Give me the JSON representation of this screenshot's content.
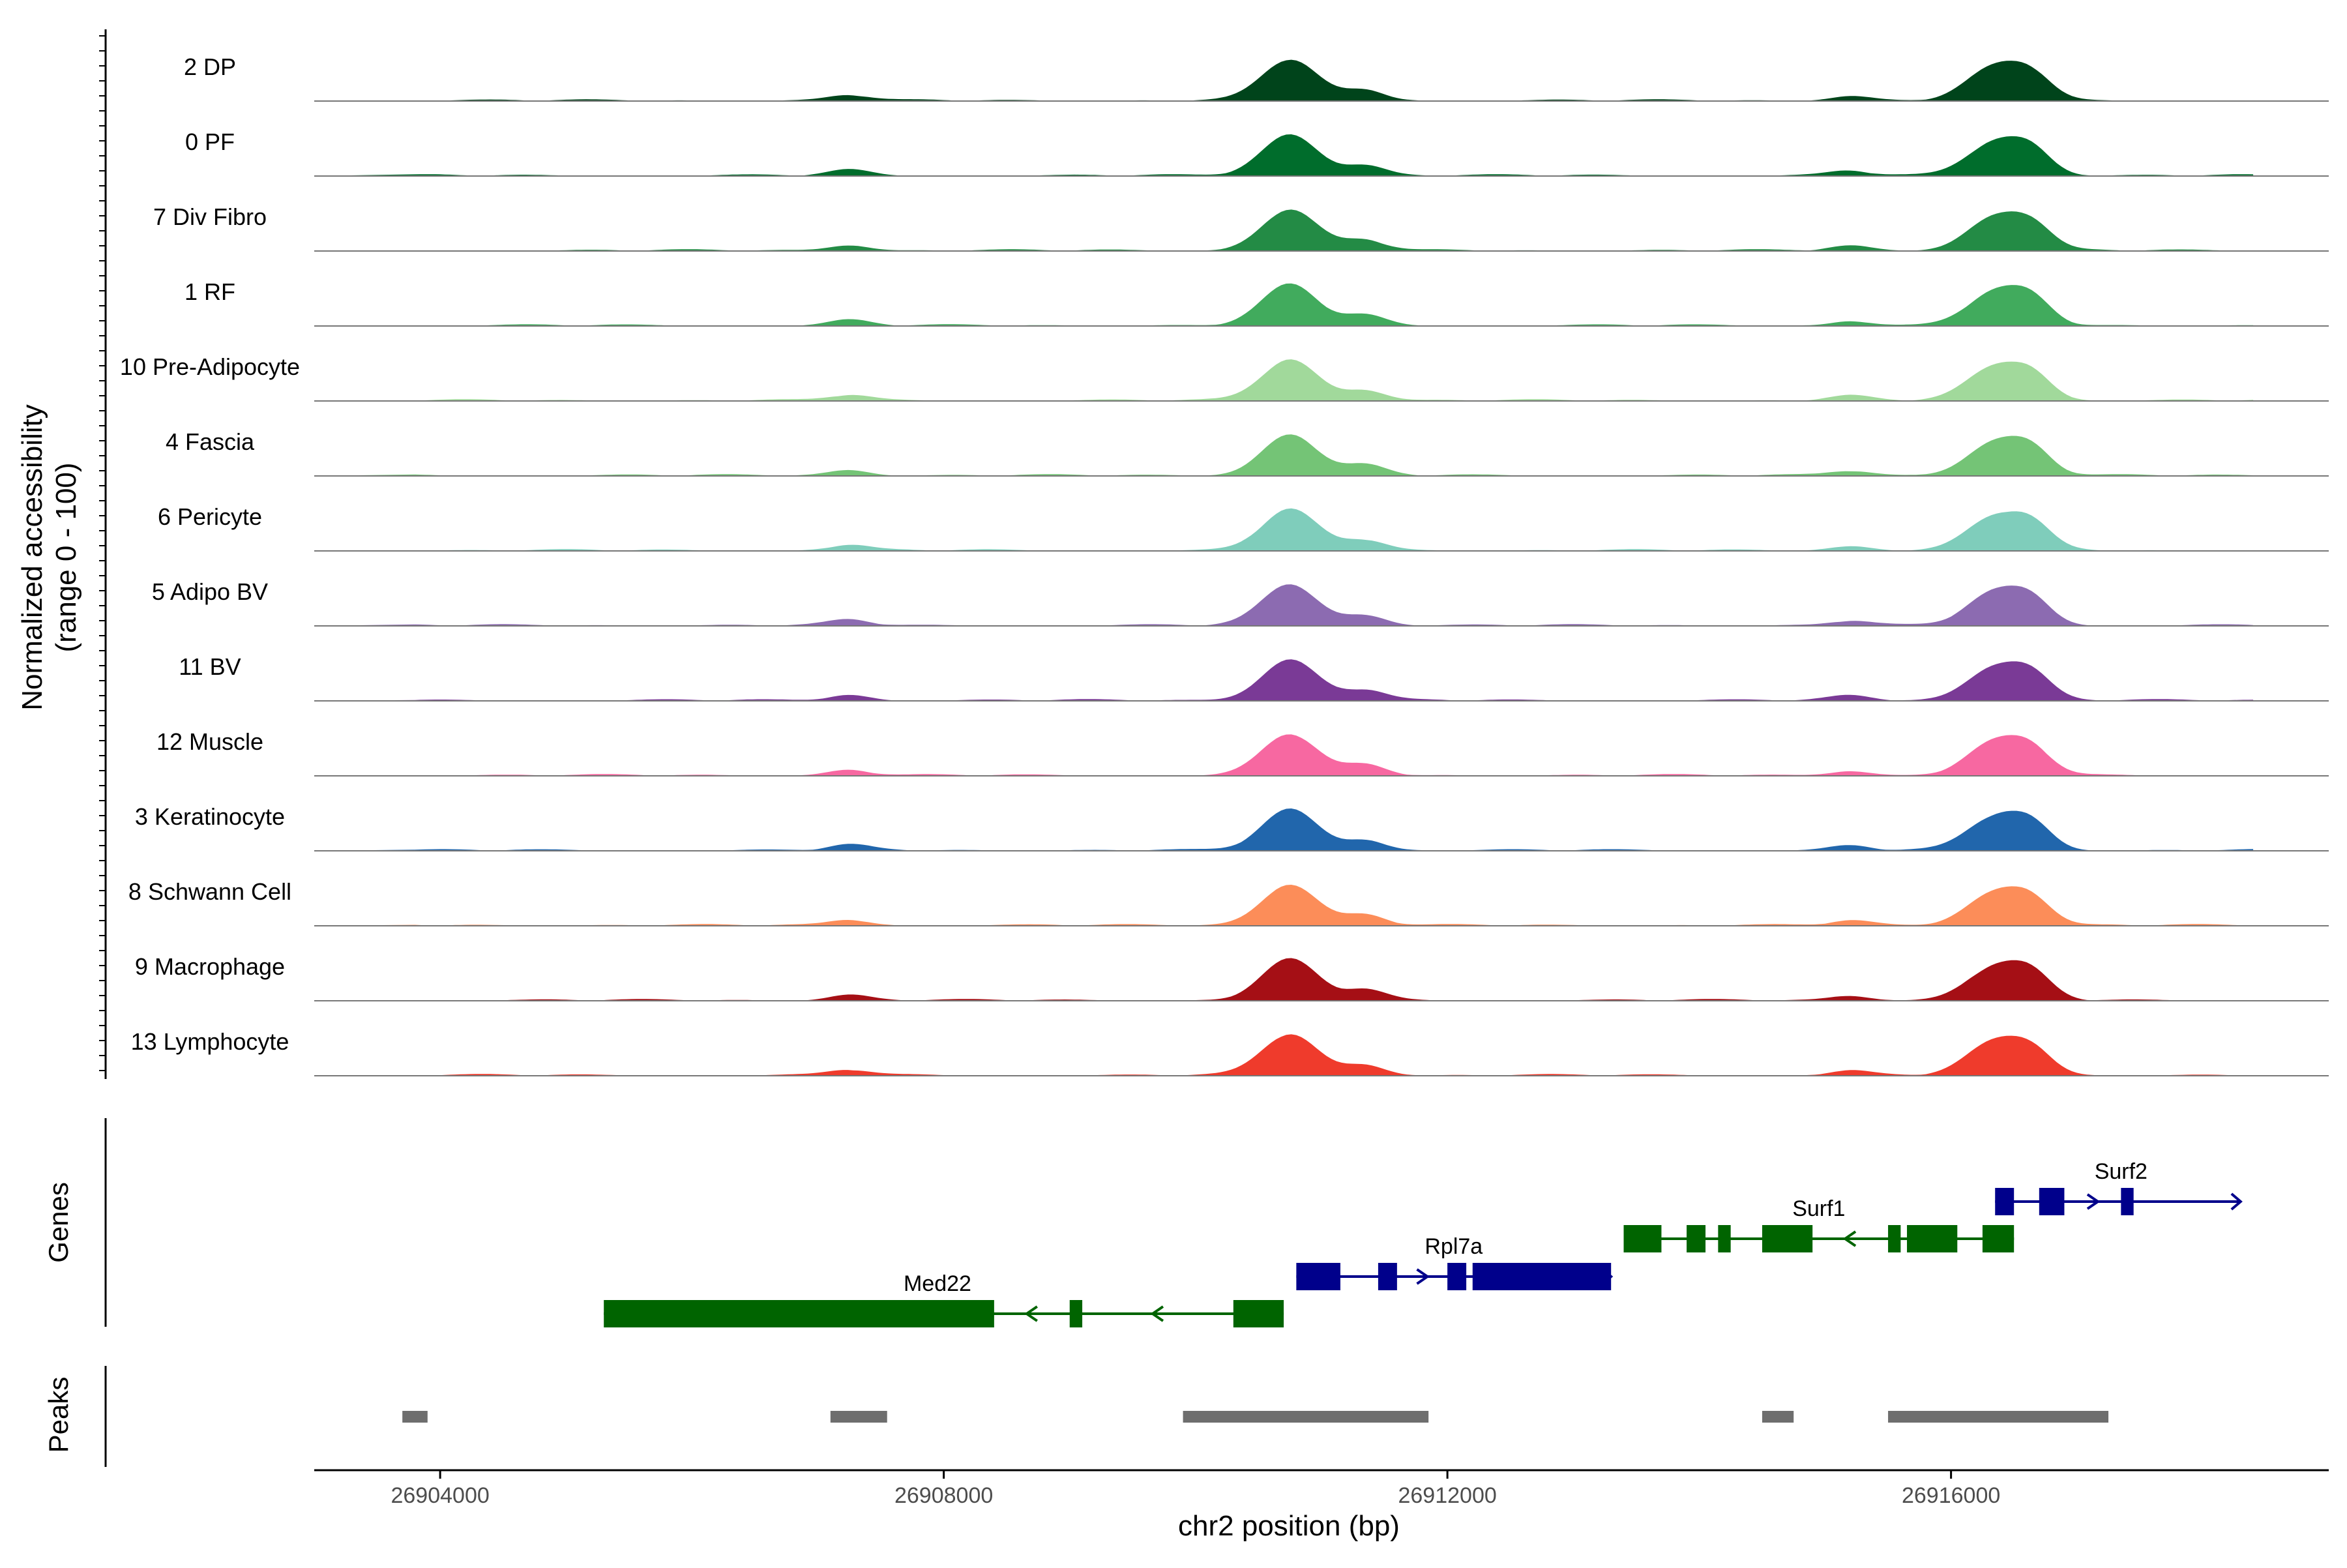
{
  "chart_data": {
    "type": "area",
    "chromosome": "chr2",
    "xlabel": "chr2 position (bp)",
    "xlim": [
      26903000,
      26919000
    ],
    "xticks": [
      {
        "value": 26904000,
        "label": "26904000"
      },
      {
        "value": 26908000,
        "label": "26908000"
      },
      {
        "value": 26912000,
        "label": "26912000"
      },
      {
        "value": 26916000,
        "label": "26916000"
      }
    ],
    "ylabel": [
      "Normalized accessibility",
      "(range 0 - 100)"
    ],
    "ylim": [
      0,
      100
    ],
    "tracks": [
      {
        "name": "2 DP",
        "color": "#00441b",
        "peaks": [
          [
            26910750,
            90
          ],
          [
            26911350,
            22
          ],
          [
            26916350,
            72
          ],
          [
            26916650,
            45
          ],
          [
            26907250,
            12
          ],
          [
            26915200,
            10
          ]
        ]
      },
      {
        "name": "0 PF",
        "color": "#006d2c",
        "peaks": [
          [
            26910750,
            90
          ],
          [
            26911350,
            22
          ],
          [
            26916350,
            72
          ],
          [
            26916650,
            45
          ],
          [
            26907250,
            12
          ],
          [
            26915200,
            10
          ]
        ]
      },
      {
        "name": "7 Div Fibro",
        "color": "#238b45",
        "peaks": [
          [
            26910750,
            90
          ],
          [
            26911350,
            22
          ],
          [
            26916350,
            72
          ],
          [
            26916650,
            45
          ],
          [
            26907250,
            12
          ],
          [
            26915200,
            10
          ]
        ]
      },
      {
        "name": "1 RF",
        "color": "#41ab5d",
        "peaks": [
          [
            26910750,
            90
          ],
          [
            26911350,
            22
          ],
          [
            26916350,
            72
          ],
          [
            26916650,
            45
          ],
          [
            26907250,
            12
          ],
          [
            26915200,
            10
          ]
        ]
      },
      {
        "name": "10 Pre-Adipocyte",
        "color": "#a1d99b",
        "peaks": [
          [
            26910750,
            90
          ],
          [
            26911350,
            22
          ],
          [
            26916350,
            72
          ],
          [
            26916650,
            45
          ],
          [
            26907250,
            12
          ],
          [
            26915200,
            10
          ]
        ]
      },
      {
        "name": "4 Fascia",
        "color": "#74c476",
        "peaks": [
          [
            26910750,
            90
          ],
          [
            26911350,
            22
          ],
          [
            26916350,
            72
          ],
          [
            26916650,
            45
          ],
          [
            26907250,
            12
          ],
          [
            26915200,
            10
          ]
        ]
      },
      {
        "name": "6 Pericyte",
        "color": "#7fcdbb",
        "peaks": [
          [
            26910750,
            90
          ],
          [
            26911350,
            22
          ],
          [
            26916350,
            72
          ],
          [
            26916650,
            45
          ],
          [
            26907250,
            12
          ],
          [
            26915200,
            10
          ]
        ]
      },
      {
        "name": "5 Adipo BV",
        "color": "#8c6bb1",
        "peaks": [
          [
            26910750,
            90
          ],
          [
            26911350,
            22
          ],
          [
            26916350,
            72
          ],
          [
            26916650,
            45
          ],
          [
            26907250,
            12
          ],
          [
            26915200,
            10
          ]
        ]
      },
      {
        "name": "11 BV",
        "color": "#7a3a96",
        "peaks": [
          [
            26910750,
            90
          ],
          [
            26911350,
            22
          ],
          [
            26916350,
            72
          ],
          [
            26916650,
            45
          ],
          [
            26907250,
            12
          ],
          [
            26915200,
            10
          ]
        ]
      },
      {
        "name": "12 Muscle",
        "color": "#f768a1",
        "peaks": [
          [
            26910750,
            90
          ],
          [
            26911350,
            22
          ],
          [
            26916350,
            72
          ],
          [
            26916650,
            45
          ],
          [
            26907250,
            12
          ],
          [
            26915200,
            10
          ]
        ]
      },
      {
        "name": "3 Keratinocyte",
        "color": "#2166ac",
        "peaks": [
          [
            26910750,
            90
          ],
          [
            26911350,
            22
          ],
          [
            26916350,
            72
          ],
          [
            26916650,
            45
          ],
          [
            26907250,
            12
          ],
          [
            26915200,
            10
          ]
        ]
      },
      {
        "name": "8 Schwann Cell",
        "color": "#fc8d59",
        "peaks": [
          [
            26910750,
            90
          ],
          [
            26911350,
            22
          ],
          [
            26916350,
            72
          ],
          [
            26916650,
            45
          ],
          [
            26907250,
            12
          ],
          [
            26915200,
            10
          ]
        ]
      },
      {
        "name": "9 Macrophage",
        "color": "#a50f15",
        "peaks": [
          [
            26910750,
            90
          ],
          [
            26911350,
            22
          ],
          [
            26916350,
            72
          ],
          [
            26916650,
            45
          ],
          [
            26907250,
            12
          ],
          [
            26915200,
            10
          ]
        ]
      },
      {
        "name": "13 Lymphocyte",
        "color": "#ef3b2c",
        "peaks": [
          [
            26910750,
            90
          ],
          [
            26911350,
            22
          ],
          [
            26916350,
            72
          ],
          [
            26916650,
            45
          ],
          [
            26907250,
            12
          ],
          [
            26915200,
            10
          ]
        ]
      }
    ],
    "genes_label": "Genes",
    "genes": [
      {
        "name": "Med22",
        "strand": "-",
        "color": "#006400",
        "row": 0,
        "start": 26905300,
        "end": 26910700,
        "exons": [
          [
            26905300,
            26908400
          ],
          [
            26909000,
            26909100
          ],
          [
            26910300,
            26910700
          ]
        ]
      },
      {
        "name": "Rpl7a",
        "strand": "+",
        "color": "#00008b",
        "row": 1,
        "start": 26910800,
        "end": 26913300,
        "exons": [
          [
            26910800,
            26911150
          ],
          [
            26911450,
            26911600
          ],
          [
            26912000,
            26912150
          ],
          [
            26912200,
            26913300
          ]
        ]
      },
      {
        "name": "Surf1",
        "strand": "-",
        "color": "#006400",
        "row": 2,
        "start": 26913400,
        "end": 26916500,
        "exons": [
          [
            26913400,
            26913700
          ],
          [
            26913900,
            26914050
          ],
          [
            26914150,
            26914250
          ],
          [
            26914500,
            26914900
          ],
          [
            26915500,
            26915600
          ],
          [
            26915650,
            26916050
          ],
          [
            26916250,
            26916500
          ]
        ]
      },
      {
        "name": "Surf2",
        "strand": "+",
        "color": "#00008b",
        "row": 3,
        "start": 26916350,
        "end": 26918300,
        "exons": [
          [
            26916350,
            26916500
          ],
          [
            26916700,
            26916900
          ],
          [
            26917350,
            26917450
          ]
        ]
      }
    ],
    "peaks_label": "Peaks",
    "peaks": [
      [
        26903700,
        26903900
      ],
      [
        26907100,
        26907550
      ],
      [
        26909900,
        26911850
      ],
      [
        26914500,
        26914750
      ],
      [
        26915500,
        26917250
      ]
    ]
  }
}
